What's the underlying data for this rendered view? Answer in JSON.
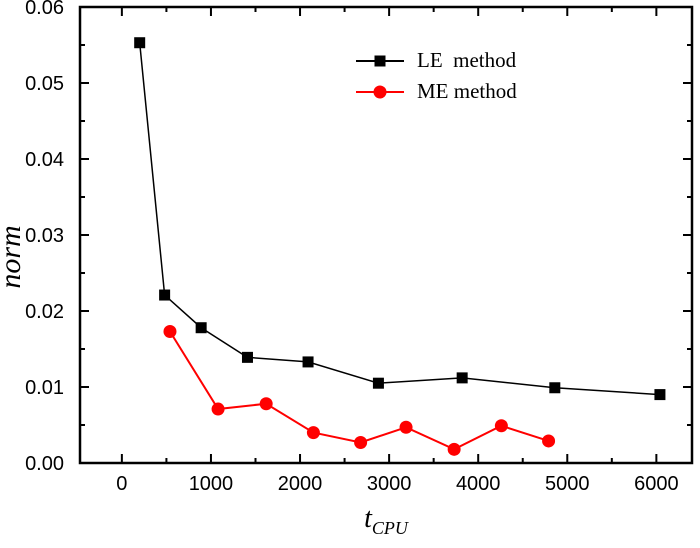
{
  "chart_data": {
    "type": "line",
    "title": "",
    "xlabel": {
      "text": "t",
      "subscript": "CPU"
    },
    "ylabel": "norm",
    "xlim": [
      -470,
      6400
    ],
    "ylim": [
      0,
      0.06
    ],
    "x_major_ticks": [
      0,
      1000,
      2000,
      3000,
      4000,
      5000,
      6000
    ],
    "x_tick_labels": [
      "0",
      "1000",
      "2000",
      "3000",
      "4000",
      "5000",
      "6000"
    ],
    "x_minor_ticks": [
      500,
      1500,
      2500,
      3500,
      4500,
      5500
    ],
    "y_major_ticks": [
      0,
      0.01,
      0.02,
      0.03,
      0.04,
      0.05,
      0.06
    ],
    "y_tick_labels": [
      "0.00",
      "0.01",
      "0.02",
      "0.03",
      "0.04",
      "0.05",
      "0.06"
    ],
    "y_minor_ticks": [
      0.005,
      0.015,
      0.025,
      0.035,
      0.045,
      0.055
    ],
    "grid": false,
    "legend_position": "inside-top-center",
    "series": [
      {
        "name": "LE  method",
        "color": "#000000",
        "marker": "square",
        "line_width": 1.5,
        "x": [
          200,
          480,
          890,
          1410,
          2090,
          2880,
          3820,
          4860,
          6040
        ],
        "y": [
          0.0553,
          0.0221,
          0.0178,
          0.0139,
          0.0133,
          0.0105,
          0.0112,
          0.0099,
          0.009
        ]
      },
      {
        "name": "ME method",
        "color": "#ff0000",
        "marker": "circle",
        "line_width": 2,
        "x": [
          540,
          1080,
          1620,
          2150,
          2680,
          3190,
          3730,
          4260,
          4790
        ],
        "y": [
          0.0173,
          0.0071,
          0.0078,
          0.004,
          0.0027,
          0.0047,
          0.0018,
          0.0049,
          0.0029
        ]
      }
    ]
  }
}
